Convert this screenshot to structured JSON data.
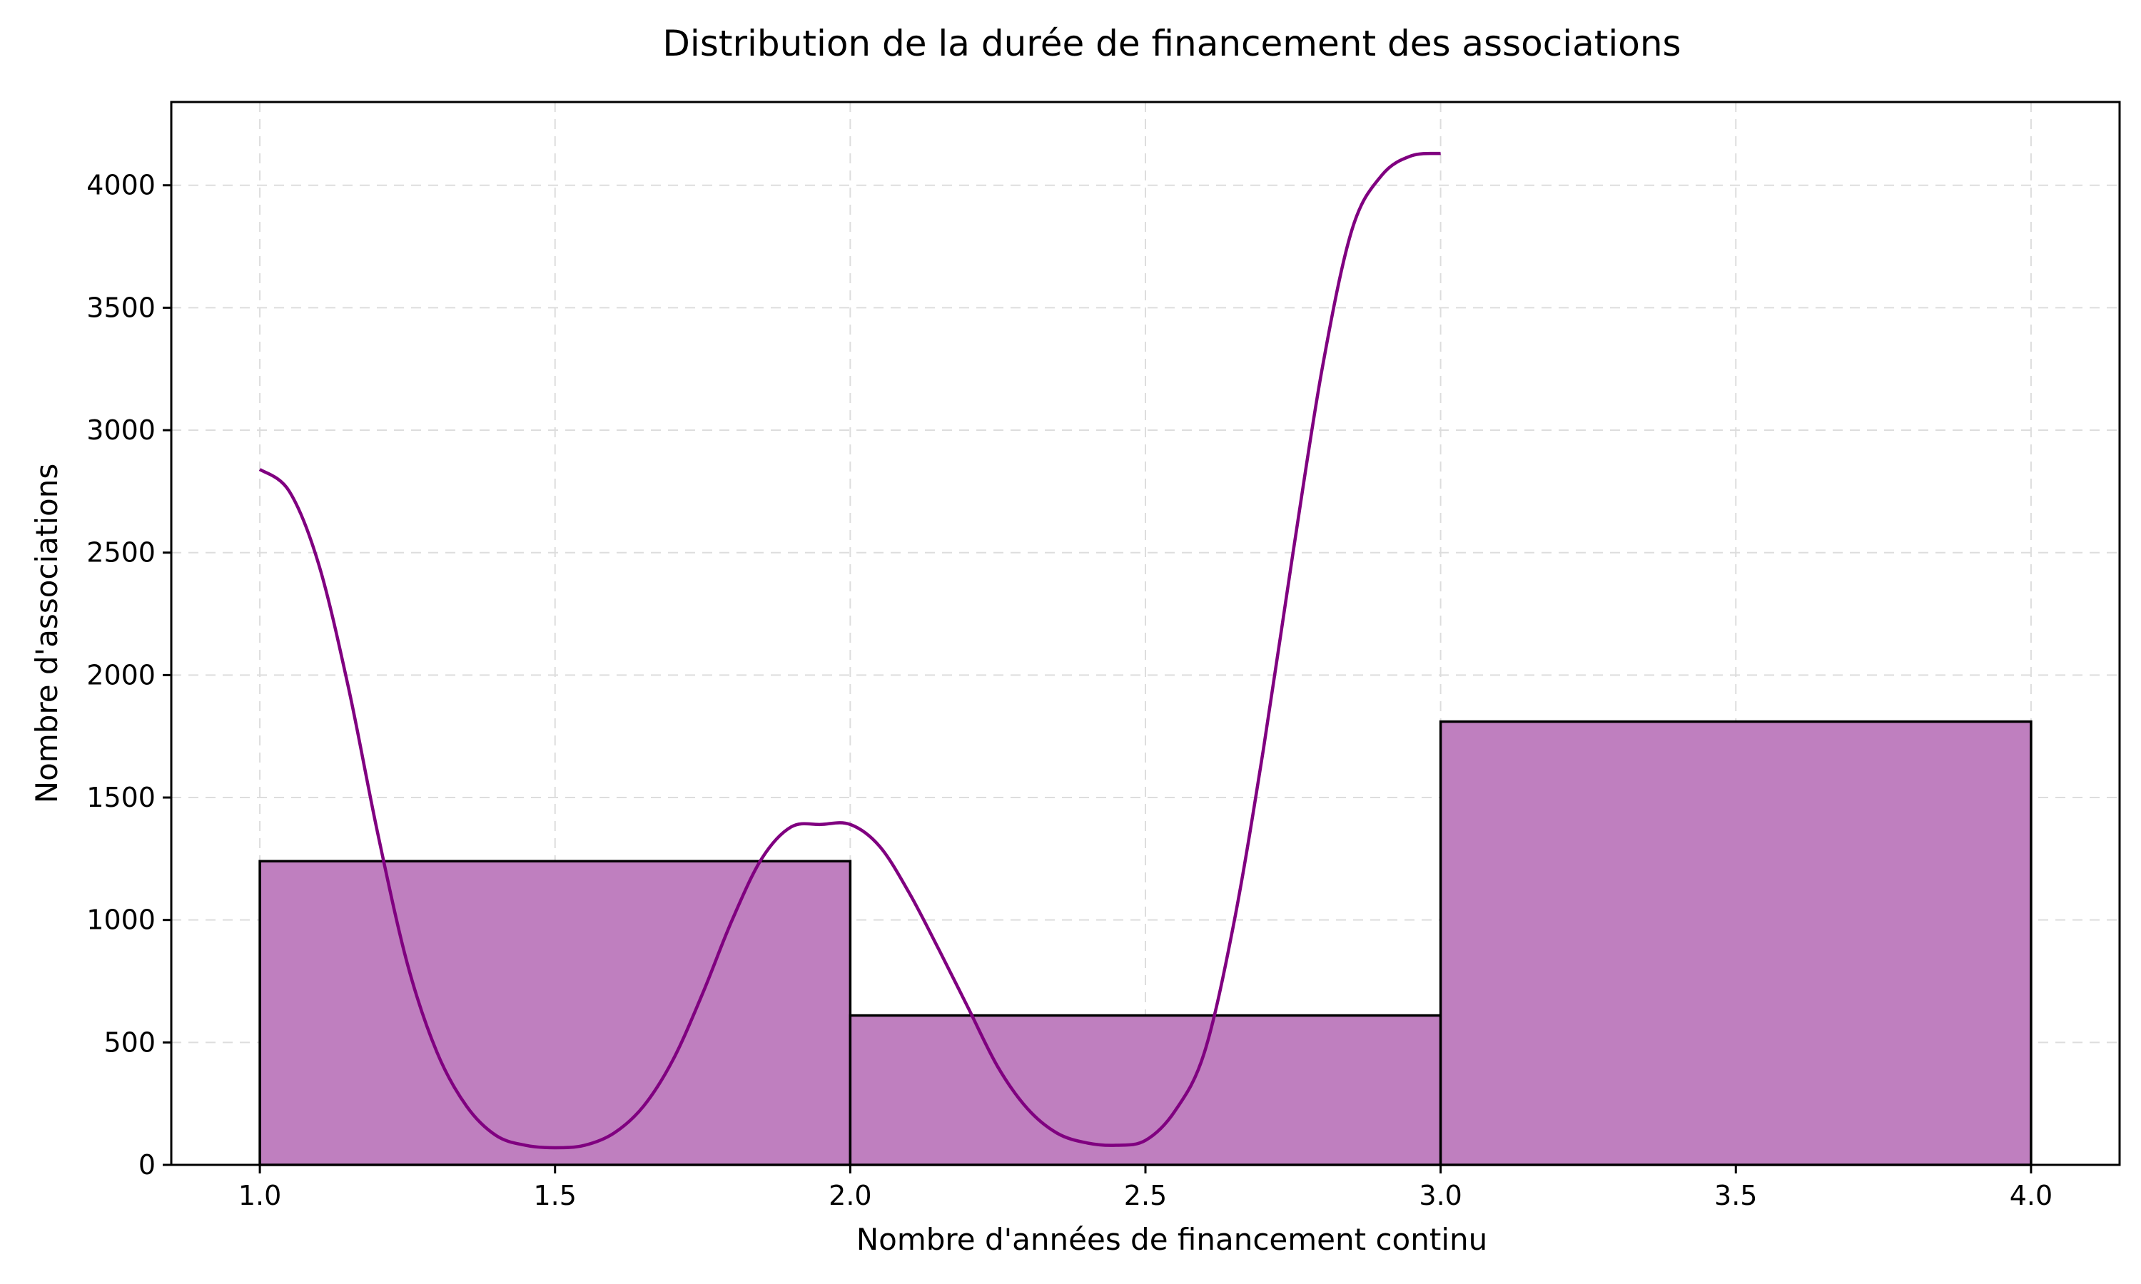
{
  "chart_data": {
    "type": "bar",
    "title": "Distribution de la durée de financement des associations",
    "xlabel": "Nombre d'années de financement continu",
    "ylabel": "Nombre d'associations",
    "xlim": [
      0.85,
      4.15
    ],
    "ylim": [
      0,
      4340
    ],
    "x_ticks": [
      "1.0",
      "1.5",
      "2.0",
      "2.5",
      "3.0",
      "3.5",
      "4.0"
    ],
    "y_ticks": [
      "0",
      "500",
      "1000",
      "1500",
      "2000",
      "2500",
      "3000",
      "3500",
      "4000"
    ],
    "grid": true,
    "colors": {
      "bar_fill": "#bf7fbf",
      "bar_edge": "#000000",
      "kde": "#800080",
      "grid": "#dddddd"
    },
    "bins": [
      {
        "start": 1.0,
        "end": 2.0,
        "value": 1240
      },
      {
        "start": 2.0,
        "end": 3.0,
        "value": 610
      },
      {
        "start": 3.0,
        "end": 4.0,
        "value": 1810
      }
    ],
    "kde_curve": {
      "x": [
        1.0,
        1.05,
        1.1,
        1.15,
        1.2,
        1.25,
        1.3,
        1.35,
        1.4,
        1.45,
        1.5,
        1.55,
        1.6,
        1.65,
        1.7,
        1.75,
        1.8,
        1.85,
        1.9,
        1.95,
        2.0,
        2.05,
        2.1,
        2.15,
        2.2,
        2.25,
        2.3,
        2.35,
        2.4,
        2.45,
        2.5,
        2.55,
        2.6,
        2.65,
        2.7,
        2.75,
        2.8,
        2.85,
        2.9,
        2.95,
        3.0
      ],
      "y": [
        2840,
        2750,
        2450,
        1950,
        1350,
        820,
        460,
        240,
        120,
        80,
        70,
        80,
        130,
        240,
        430,
        700,
        1000,
        1250,
        1380,
        1390,
        1390,
        1300,
        1110,
        880,
        640,
        400,
        230,
        130,
        90,
        80,
        100,
        220,
        460,
        990,
        1700,
        2500,
        3260,
        3820,
        4040,
        4120,
        4130
      ]
    }
  }
}
